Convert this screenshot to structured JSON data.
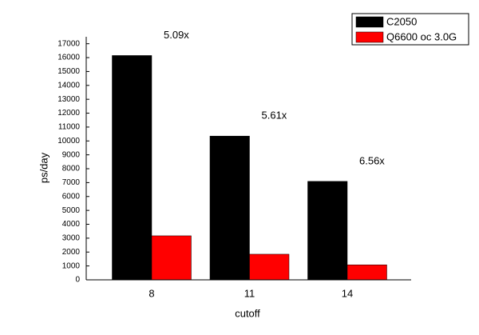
{
  "chart_data": {
    "type": "bar",
    "x_label": "cutoff",
    "y_label": "ps/day",
    "categories": [
      "8",
      "11",
      "14"
    ],
    "series": [
      {
        "name": "C2050",
        "color": "#000000",
        "values": [
          16150,
          10350,
          7090
        ]
      },
      {
        "name": "Q6600 oc 3.0G",
        "color": "#ff0000",
        "values": [
          3170,
          1845,
          1080
        ]
      }
    ],
    "annotations": [
      "5.09x",
      "5.61x",
      "6.56x"
    ],
    "ylim": [
      0,
      17500
    ],
    "yticks": [
      0,
      1000,
      2000,
      3000,
      4000,
      5000,
      6000,
      7000,
      8000,
      9000,
      10000,
      11000,
      12000,
      13000,
      14000,
      15000,
      16000,
      17000
    ],
    "legend": "upper right"
  }
}
